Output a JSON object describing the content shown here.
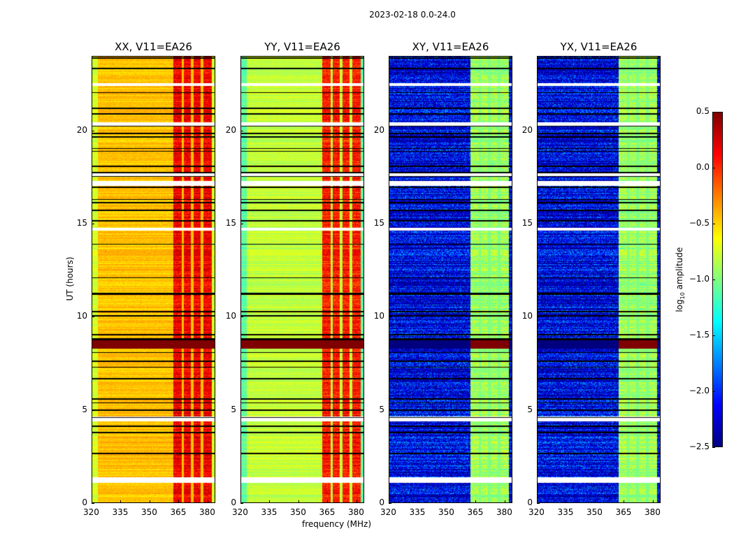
{
  "chart_data": {
    "type": "heatmap",
    "suptitle": "2023-02-18 0.0-24.0",
    "xlabel": "frequency (MHz)",
    "ylabel": "UT (hours)",
    "xlim": [
      320,
      384
    ],
    "ylim": [
      0,
      24
    ],
    "xticks": [
      "320",
      "335",
      "350",
      "365",
      "380"
    ],
    "xtick_values": [
      320,
      335,
      350,
      365,
      380
    ],
    "yticks": [
      "0",
      "5",
      "10",
      "15",
      "20"
    ],
    "ytick_values": [
      0,
      5,
      10,
      15,
      20
    ],
    "colormap": "jet",
    "colorbar": {
      "label_main": "log",
      "label_sub": "10",
      "label_rest": " amplitude",
      "vmin": -2.5,
      "vmax": 0.5,
      "ticks": [
        "0.5",
        "0.0",
        "−0.5",
        "−1.0",
        "−1.5",
        "−2.0",
        "−2.5"
      ],
      "tick_values": [
        0.5,
        0.0,
        -0.5,
        -1.0,
        -1.5,
        -2.0,
        -2.5
      ]
    },
    "band_mhz": [
      362,
      382
    ],
    "band_notches_mhz": [
      367,
      372,
      377
    ],
    "flagged_white_hours": [
      [
        22.4,
        22.55
      ],
      [
        20.25,
        20.45
      ],
      [
        17.55,
        17.7
      ],
      [
        17.05,
        17.3
      ],
      [
        14.65,
        14.8
      ],
      [
        4.4,
        4.65
      ],
      [
        1.1,
        1.4
      ]
    ],
    "dark_band_hours": [
      8.3,
      8.85
    ],
    "panels": [
      {
        "title": "XX, V11=EA26",
        "base": -0.45,
        "band": 0.15
      },
      {
        "title": "YY, V11=EA26",
        "base": -0.8,
        "band": 0.05
      },
      {
        "title": "XY, V11=EA26",
        "base": -2.2,
        "band": -0.9
      },
      {
        "title": "YX, V11=EA26",
        "base": -2.2,
        "band": -0.9
      }
    ]
  }
}
